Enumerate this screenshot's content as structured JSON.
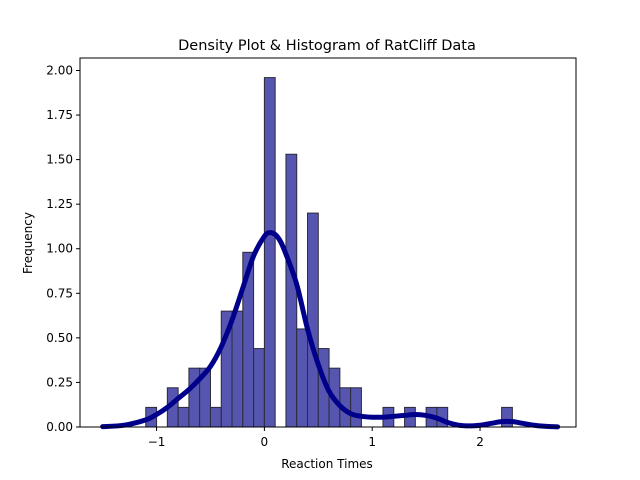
{
  "chart_data": {
    "type": "bar",
    "title": "Density Plot & Histogram of RatCliff Data",
    "xlabel": "Reaction Times",
    "ylabel": "Frequency",
    "xlim": [
      -1.71,
      2.89
    ],
    "ylim": [
      0,
      2.07
    ],
    "bin_width": 0.1,
    "x_ticks": [
      -1,
      0,
      1,
      2
    ],
    "x_tick_labels": [
      "−1",
      "0",
      "1",
      "2"
    ],
    "y_ticks": [
      0,
      0.25,
      0.5,
      0.75,
      1.0,
      1.25,
      1.5,
      1.75,
      2.0
    ],
    "y_tick_labels": [
      "0.00",
      "0.25",
      "0.50",
      "0.75",
      "1.00",
      "1.25",
      "1.50",
      "1.75",
      "2.00"
    ],
    "grid": false,
    "legend": "none",
    "histogram": {
      "bin_starts": [
        -1.1,
        -1.0,
        -0.9,
        -0.8,
        -0.7,
        -0.6,
        -0.5,
        -0.4,
        -0.3,
        -0.2,
        -0.1,
        0.0,
        0.1,
        0.2,
        0.3,
        0.4,
        0.5,
        0.6,
        0.7,
        0.8,
        0.9,
        1.0,
        1.1,
        1.2,
        1.3,
        1.4,
        1.5,
        1.6,
        1.7,
        1.8,
        1.9,
        2.0,
        2.1,
        2.2
      ],
      "values": [
        0.11,
        0,
        0.22,
        0.11,
        0.33,
        0.33,
        0.11,
        0.65,
        0.65,
        0.98,
        0.44,
        1.96,
        0,
        1.53,
        0.55,
        1.2,
        0.44,
        0.33,
        0.22,
        0.22,
        0,
        0,
        0.11,
        0,
        0.11,
        0,
        0.11,
        0.11,
        0,
        0,
        0,
        0,
        0,
        0.11
      ]
    },
    "density": {
      "x": [
        -1.5,
        -1.3,
        -1.1,
        -1.0,
        -0.9,
        -0.8,
        -0.7,
        -0.6,
        -0.5,
        -0.4,
        -0.3,
        -0.2,
        -0.1,
        0.0,
        0.05,
        0.1,
        0.15,
        0.2,
        0.3,
        0.4,
        0.5,
        0.6,
        0.7,
        0.8,
        0.9,
        1.0,
        1.1,
        1.2,
        1.3,
        1.4,
        1.5,
        1.6,
        1.7,
        1.8,
        1.9,
        2.0,
        2.1,
        2.2,
        2.3,
        2.4,
        2.5,
        2.6,
        2.72
      ],
      "y": [
        0.002,
        0.01,
        0.04,
        0.07,
        0.11,
        0.16,
        0.21,
        0.27,
        0.34,
        0.45,
        0.6,
        0.78,
        0.96,
        1.07,
        1.09,
        1.08,
        1.04,
        0.97,
        0.8,
        0.55,
        0.35,
        0.2,
        0.12,
        0.075,
        0.06,
        0.055,
        0.055,
        0.06,
        0.065,
        0.07,
        0.065,
        0.05,
        0.025,
        0.01,
        0.006,
        0.01,
        0.02,
        0.03,
        0.03,
        0.02,
        0.01,
        0.004,
        0.001
      ]
    },
    "colors": {
      "bar_fill": "#5656b0",
      "bar_edge": "#2a2a3a",
      "density_line": "#00008b"
    }
  }
}
